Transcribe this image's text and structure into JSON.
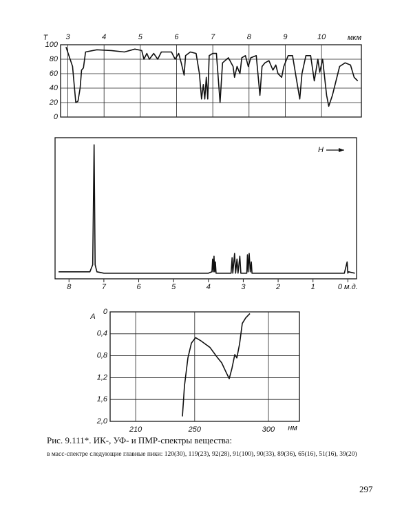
{
  "chart_data": [
    {
      "type": "line",
      "color": "#111",
      "grid": true,
      "ylabel": "T",
      "xlabel": "мкм",
      "xlim": [
        2.8,
        11.1
      ],
      "xticks": [
        3,
        4,
        5,
        6,
        7,
        8,
        9,
        10
      ],
      "ylim": [
        0,
        100
      ],
      "yticks": [
        0,
        20,
        40,
        60,
        80,
        100
      ],
      "x": [
        2.95,
        3.13,
        3.22,
        3.28,
        3.34,
        3.38,
        3.43,
        3.49,
        3.8,
        4.2,
        4.56,
        4.85,
        5.04,
        5.1,
        5.18,
        5.25,
        5.37,
        5.48,
        5.58,
        5.86,
        5.96,
        6.06,
        6.13,
        6.21,
        6.25,
        6.38,
        6.54,
        6.63,
        6.69,
        6.74,
        6.78,
        6.82,
        6.86,
        6.9,
        7.0,
        7.1,
        7.2,
        7.27,
        7.43,
        7.56,
        7.6,
        7.67,
        7.75,
        7.8,
        7.9,
        7.98,
        8.05,
        8.2,
        8.3,
        8.36,
        8.44,
        8.55,
        8.66,
        8.74,
        8.8,
        8.9,
        8.96,
        9.08,
        9.2,
        9.3,
        9.4,
        9.46,
        9.57,
        9.7,
        9.8,
        9.9,
        9.95,
        10.03,
        10.14,
        10.2,
        10.3,
        10.5,
        10.65,
        10.8,
        10.9,
        11.0
      ],
      "values": [
        97,
        70,
        20,
        22,
        40,
        65,
        68,
        90,
        93,
        92,
        90,
        94,
        92,
        80,
        88,
        80,
        88,
        80,
        90,
        90,
        80,
        88,
        75,
        58,
        85,
        90,
        88,
        60,
        25,
        45,
        25,
        55,
        25,
        85,
        88,
        88,
        20,
        75,
        82,
        70,
        55,
        70,
        60,
        82,
        85,
        70,
        82,
        85,
        30,
        70,
        75,
        78,
        65,
        72,
        60,
        55,
        70,
        85,
        85,
        55,
        25,
        60,
        85,
        85,
        50,
        80,
        62,
        80,
        30,
        15,
        30,
        70,
        75,
        72,
        55,
        50
      ]
    },
    {
      "type": "line",
      "color": "#111",
      "grid": false,
      "annotation": "H",
      "xlim": [
        8.4,
        -0.25
      ],
      "xticks": [
        8,
        7,
        6,
        5,
        4,
        3,
        2,
        1,
        {
          "value": 0,
          "label": "0 м.д."
        }
      ],
      "ylim": [
        0,
        100
      ],
      "x": [
        8.3,
        7.4,
        7.32,
        7.28,
        7.25,
        7.2,
        7.0,
        4.0,
        3.9,
        3.88,
        3.86,
        3.84,
        3.82,
        3.8,
        3.78,
        3.35,
        3.32,
        3.3,
        3.25,
        3.22,
        3.18,
        3.15,
        3.1,
        3.07,
        2.9,
        2.88,
        2.86,
        2.83,
        2.8,
        2.77,
        2.75,
        0.1,
        0.02,
        0,
        -0.02,
        -0.2
      ],
      "values": [
        5,
        5,
        10,
        95,
        10,
        5,
        4,
        4,
        5,
        14,
        5,
        16,
        5,
        12,
        4,
        4,
        15,
        4,
        18,
        4,
        14,
        4,
        16,
        4,
        4,
        17,
        5,
        18,
        5,
        12,
        4,
        4,
        12,
        4,
        5,
        4
      ]
    },
    {
      "type": "line",
      "color": "#111",
      "grid": true,
      "ylabel": "A",
      "xlabel": "нм",
      "xlim": [
        192.7,
        321
      ],
      "xticks": [
        210,
        250,
        300
      ],
      "ylim": [
        2.0,
        0
      ],
      "yticks": [
        0,
        {
          "value": 0.4,
          "label": "0,4"
        },
        {
          "value": 0.8,
          "label": "0,8"
        },
        {
          "value": 1.2,
          "label": "1,2"
        },
        {
          "value": 1.6,
          "label": "1,6"
        },
        {
          "value": 2.0,
          "label": "2,0"
        }
      ],
      "x": [
        241.7,
        243.1,
        245.4,
        247.8,
        250.6,
        254.3,
        260.4,
        265.0,
        268.3,
        271.1,
        273.4,
        275.3,
        277.2,
        278.6,
        280.4,
        282.3,
        284.6,
        287.4
      ],
      "values": [
        1.91,
        1.35,
        0.84,
        0.57,
        0.47,
        0.53,
        0.65,
        0.82,
        0.93,
        1.09,
        1.22,
        1.03,
        0.78,
        0.84,
        0.59,
        0.21,
        0.11,
        0.03
      ]
    }
  ],
  "caption": {
    "title": "Рис. 9.111*. ИК-, УФ- и ПМР-спектры вещества:",
    "text": "в масс-спектре следующие главные пики: 120(30), 119(23), 92(28), 91(100), 90(33), 89(36), 65(16), 51(16), 39(20)"
  },
  "page_number": "297"
}
